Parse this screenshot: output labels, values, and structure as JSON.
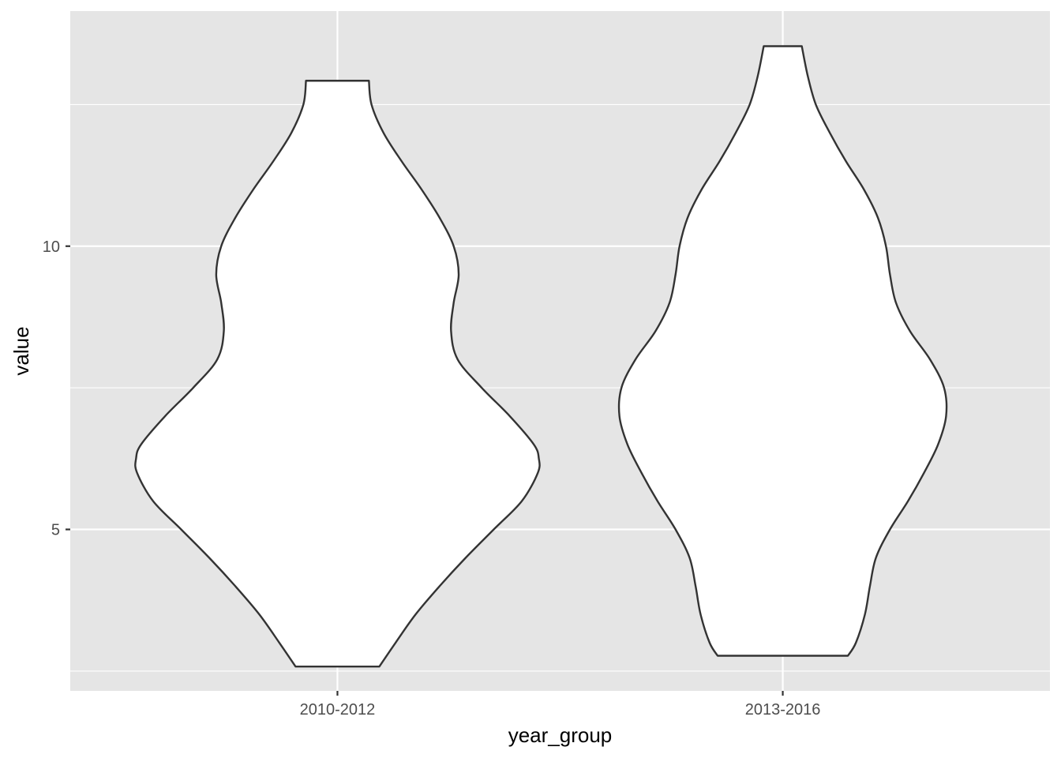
{
  "chart_data": {
    "type": "violin",
    "xlabel": "year_group",
    "ylabel": "value",
    "categories": [
      "2010-2012",
      "2013-2016"
    ],
    "ylim": [
      2.15,
      14.15
    ],
    "y_ticks": [
      {
        "value": 5,
        "label": "5"
      },
      {
        "value": 10,
        "label": "10"
      }
    ],
    "y_minor_gridlines": [
      2.5,
      7.5,
      12.5
    ],
    "grid": true,
    "background": "#e5e5e5",
    "gridline_color": "#ffffff",
    "violin_fill": "#ffffff",
    "violin_stroke": "#333333",
    "violins": [
      {
        "category": "2010-2012",
        "profile": [
          [
            2.58,
            0.209
          ],
          [
            3.0,
            0.29
          ],
          [
            3.5,
            0.39
          ],
          [
            4.0,
            0.51
          ],
          [
            4.5,
            0.64
          ],
          [
            5.0,
            0.78
          ],
          [
            5.5,
            0.92
          ],
          [
            6.0,
            1.0
          ],
          [
            6.25,
            1.005
          ],
          [
            6.5,
            0.98
          ],
          [
            7.0,
            0.86
          ],
          [
            7.5,
            0.72
          ],
          [
            8.0,
            0.6
          ],
          [
            8.5,
            0.567
          ],
          [
            9.0,
            0.58
          ],
          [
            9.5,
            0.605
          ],
          [
            10.0,
            0.58
          ],
          [
            10.5,
            0.51
          ],
          [
            11.0,
            0.42
          ],
          [
            11.5,
            0.32
          ],
          [
            12.0,
            0.23
          ],
          [
            12.5,
            0.17
          ],
          [
            12.92,
            0.157
          ]
        ]
      },
      {
        "category": "2013-2016",
        "profile": [
          [
            2.77,
            0.325
          ],
          [
            3.0,
            0.365
          ],
          [
            3.5,
            0.41
          ],
          [
            4.0,
            0.435
          ],
          [
            4.5,
            0.465
          ],
          [
            5.0,
            0.535
          ],
          [
            5.5,
            0.625
          ],
          [
            6.0,
            0.705
          ],
          [
            6.5,
            0.775
          ],
          [
            7.0,
            0.815
          ],
          [
            7.5,
            0.805
          ],
          [
            8.0,
            0.735
          ],
          [
            8.5,
            0.635
          ],
          [
            9.0,
            0.565
          ],
          [
            9.5,
            0.535
          ],
          [
            10.0,
            0.515
          ],
          [
            10.5,
            0.475
          ],
          [
            11.0,
            0.405
          ],
          [
            11.5,
            0.315
          ],
          [
            12.0,
            0.235
          ],
          [
            12.5,
            0.165
          ],
          [
            13.0,
            0.125
          ],
          [
            13.53,
            0.095
          ]
        ]
      }
    ]
  }
}
